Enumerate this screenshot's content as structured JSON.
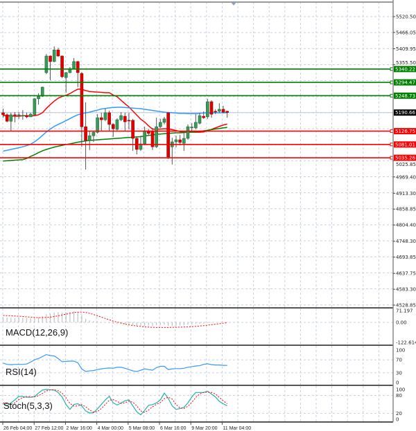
{
  "chart_data": [
    {
      "type": "candlestick",
      "panel": "main",
      "price_ticks": [
        "5520.50",
        "5466.05",
        "5409.95",
        "5355.50",
        "5025.85",
        "4969.40",
        "4913.30",
        "4858.85",
        "4804.40",
        "4748.30",
        "4693.85",
        "4637.75",
        "4583.30",
        "4528.85"
      ],
      "ylim": [
        4528.85,
        5577.6
      ],
      "grid": true,
      "current_price": "5190.66",
      "levels": [
        {
          "value": "5340.22",
          "color": "#008000",
          "kind": "resistance"
        },
        {
          "value": "5294.47",
          "color": "#008000",
          "kind": "resistance"
        },
        {
          "value": "5248.73",
          "color": "#008000",
          "kind": "resistance"
        },
        {
          "value": "5126.75",
          "color": "#ff0000",
          "kind": "support"
        },
        {
          "value": "5081.01",
          "color": "#ff0000",
          "kind": "support"
        },
        {
          "value": "5035.26",
          "color": "#ff0000",
          "kind": "support"
        }
      ],
      "time_labels": [
        "26 Feb 04:00",
        "27 Feb 12:00",
        "2 Mar 16:00",
        "4 Mar 00:00",
        "5 Mar 08:00",
        "6 Mar 16:00",
        "9 Mar 20:00",
        "11 Mar 04:00"
      ],
      "ohlc": [
        [
          5190,
          5204,
          5173,
          5183
        ],
        [
          5183,
          5188,
          5157,
          5161
        ],
        [
          5161,
          5190,
          5128,
          5183
        ],
        [
          5183,
          5192,
          5157,
          5182
        ],
        [
          5183,
          5192,
          5169,
          5183
        ],
        [
          5180,
          5199,
          5166,
          5181
        ],
        [
          5180,
          5190,
          5171,
          5176
        ],
        [
          5176,
          5190,
          5176,
          5185
        ],
        [
          5183,
          5240,
          5180,
          5238
        ],
        [
          5238,
          5257,
          5218,
          5247
        ],
        [
          5247,
          5280,
          5245,
          5278
        ],
        [
          5328,
          5392,
          5323,
          5385
        ],
        [
          5385,
          5387,
          5302,
          5366
        ],
        [
          5366,
          5418,
          5364,
          5406
        ],
        [
          5406,
          5413,
          5383,
          5385
        ],
        [
          5385,
          5387,
          5309,
          5314
        ],
        [
          5311,
          5330,
          5259,
          5328
        ],
        [
          5328,
          5347,
          5326,
          5342
        ],
        [
          5342,
          5378,
          5340,
          5366
        ],
        [
          5366,
          5368,
          5278,
          5328
        ],
        [
          5325,
          5330,
          5073,
          5142
        ],
        [
          5142,
          5226,
          4995,
          5095
        ],
        [
          5095,
          5126,
          5062,
          5111
        ],
        [
          5111,
          5128,
          5090,
          5123
        ],
        [
          5123,
          5185,
          5119,
          5173
        ],
        [
          5173,
          5190,
          5126,
          5166
        ],
        [
          5166,
          5204,
          5161,
          5190
        ],
        [
          5190,
          5197,
          5126,
          5150
        ],
        [
          5150,
          5154,
          5107,
          5135
        ],
        [
          5133,
          5171,
          5128,
          5166
        ],
        [
          5166,
          5192,
          5161,
          5180
        ],
        [
          5178,
          5190,
          5126,
          5159
        ],
        [
          5164,
          5190,
          5133,
          5163
        ],
        [
          5164,
          5169,
          5059,
          5102
        ],
        [
          5102,
          5109,
          5047,
          5064
        ],
        [
          5064,
          5111,
          5059,
          5083
        ],
        [
          5083,
          5142,
          5078,
          5128
        ],
        [
          5128,
          5135,
          5111,
          5119
        ],
        [
          5126,
          5138,
          5062,
          5073
        ],
        [
          5073,
          5173,
          5069,
          5142
        ],
        [
          5142,
          5169,
          5138,
          5157
        ],
        [
          5157,
          5176,
          5150,
          5169
        ],
        [
          5190,
          5192,
          5031,
          5038
        ],
        [
          5073,
          5104,
          5012,
          5090
        ],
        [
          5090,
          5111,
          5071,
          5097
        ],
        [
          5097,
          5114,
          5078,
          5088
        ],
        [
          5085,
          5126,
          5059,
          5102
        ],
        [
          5102,
          5150,
          5097,
          5142
        ],
        [
          5140,
          5154,
          5126,
          5141
        ],
        [
          5138,
          5185,
          5133,
          5157
        ],
        [
          5154,
          5190,
          5150,
          5180
        ],
        [
          5178,
          5195,
          5169,
          5173
        ],
        [
          5176,
          5238,
          5169,
          5228
        ],
        [
          5228,
          5233,
          5173,
          5185
        ],
        [
          5195,
          5202,
          5185,
          5194
        ],
        [
          5195,
          5223,
          5190,
          5202
        ],
        [
          5202,
          5214,
          5188,
          5192
        ],
        [
          5195,
          5197,
          5173,
          5191
        ]
      ],
      "series": [
        {
          "color": "#ff0000",
          "values": [
            5180,
            5180,
            5179,
            5178,
            5178,
            5180,
            5180,
            5179,
            5180,
            5183,
            5190,
            5205,
            5218,
            5230,
            5240,
            5246,
            5250,
            5256,
            5264,
            5271,
            5271,
            5266,
            5263,
            5262,
            5261,
            5260,
            5259,
            5259,
            5251,
            5245,
            5233,
            5221,
            5210,
            5196,
            5182,
            5168,
            5158,
            5145,
            5134,
            5133,
            5134,
            5135,
            5135,
            5132,
            5129,
            5125,
            5123,
            5123,
            5123,
            5123,
            5123,
            5124,
            5128,
            5133,
            5138,
            5143,
            5148,
            5151
          ]
        },
        {
          "color": "#3399ff",
          "values": [
            5058,
            5061,
            5064,
            5067,
            5070,
            5073,
            5077,
            5082,
            5090,
            5100,
            5112,
            5124,
            5134,
            5143,
            5150,
            5156,
            5163,
            5170,
            5177,
            5183,
            5187,
            5190,
            5192,
            5196,
            5199,
            5203,
            5205,
            5207,
            5208,
            5209,
            5209,
            5208,
            5207,
            5206,
            5205,
            5204,
            5202,
            5200,
            5198,
            5196,
            5194,
            5192,
            5191,
            5190,
            5189,
            5188,
            5188,
            5187,
            5187,
            5187,
            5188,
            5189,
            5190,
            5190,
            5190,
            5190,
            5190,
            5190
          ]
        },
        {
          "color": "#008000",
          "values": [
            5024,
            5025,
            5026,
            5027,
            5028,
            5029,
            5033,
            5040,
            5046,
            5053,
            5059,
            5064,
            5068,
            5072,
            5075,
            5078,
            5081,
            5083,
            5086,
            5089,
            5091,
            5093,
            5095,
            5096,
            5097,
            5098,
            5099,
            5100,
            5101,
            5102,
            5103,
            5104,
            5105,
            5106,
            5107,
            5108,
            5110,
            5112,
            5114,
            5116,
            5117,
            5118,
            5119,
            5120,
            5121,
            5121,
            5122,
            5123,
            5124,
            5125,
            5126,
            5128,
            5130,
            5132,
            5134,
            5136,
            5138,
            5140
          ]
        }
      ]
    },
    {
      "type": "bar+line",
      "panel": "macd",
      "label": "MACD(12,26,9)",
      "ticks": [
        "71.197",
        "0.00",
        "-122.614"
      ],
      "ylim": [
        -122.614,
        71.197
      ],
      "histogram": [
        30,
        29,
        28,
        27,
        28,
        27,
        26,
        25,
        27,
        32,
        38,
        50,
        52,
        60,
        62,
        60,
        62,
        64,
        68,
        64,
        45,
        22,
        12,
        8,
        6,
        3,
        2,
        -4,
        -8,
        -10,
        -10,
        -12,
        -12,
        -18,
        -22,
        -22,
        -20,
        -20,
        -22,
        -18,
        -16,
        -14,
        -20,
        -22,
        -20,
        -20,
        -18,
        -14,
        -12,
        -10,
        -8,
        -7,
        -3,
        -2,
        0,
        1,
        2,
        2
      ],
      "signal": [
        42,
        41,
        40,
        39,
        38,
        36,
        34,
        32,
        30,
        29,
        29,
        30,
        32,
        36,
        40,
        45,
        50,
        55,
        60,
        62,
        63,
        60,
        55,
        48,
        40,
        32,
        24,
        16,
        8,
        2,
        -4,
        -10,
        -15,
        -19,
        -22,
        -25,
        -27,
        -29,
        -30,
        -31,
        -31,
        -31,
        -31,
        -30,
        -30,
        -29,
        -28,
        -27,
        -26,
        -24,
        -22,
        -20,
        -17,
        -14,
        -11,
        -8,
        -5,
        -2
      ],
      "histogram_color": "#c0c0c0",
      "signal_color": "#ff0000"
    },
    {
      "type": "line",
      "panel": "rsi",
      "label": "RSI(14)",
      "ticks": [
        "100",
        "70",
        "30",
        "0"
      ],
      "ylim": [
        0,
        100
      ],
      "color": "#3399ff",
      "values": [
        60,
        56,
        55,
        56,
        56,
        56,
        57,
        63,
        70,
        74,
        80,
        86,
        83,
        82,
        74,
        64,
        65,
        66,
        66,
        61,
        42,
        34,
        36,
        37,
        40,
        42,
        44,
        45,
        44,
        47,
        47,
        44,
        40,
        36,
        34,
        38,
        42,
        40,
        38,
        46,
        50,
        50,
        40,
        42,
        43,
        43,
        44,
        47,
        49,
        51,
        52,
        56,
        58,
        55,
        54,
        54,
        53,
        53
      ]
    },
    {
      "type": "line",
      "panel": "stochastic",
      "label": "Stoch(5,3,3)",
      "ticks": [
        "100",
        "80",
        "20",
        "0"
      ],
      "ylim": [
        0,
        100
      ],
      "main_color": "#20b2aa",
      "signal_color": "#ff0000",
      "main": [
        52,
        45,
        55,
        65,
        77,
        76,
        74,
        74,
        76,
        88,
        98,
        100,
        99,
        98,
        90,
        75,
        50,
        33,
        50,
        52,
        45,
        28,
        21,
        22,
        35,
        50,
        65,
        77,
        55,
        48,
        55,
        62,
        65,
        45,
        25,
        15,
        30,
        47,
        49,
        55,
        65,
        88,
        70,
        45,
        33,
        36,
        40,
        55,
        75,
        90,
        90,
        90,
        94,
        85,
        75,
        60,
        52,
        45
      ],
      "signal": [
        55,
        52,
        50,
        55,
        66,
        73,
        76,
        75,
        75,
        79,
        87,
        95,
        99,
        99,
        96,
        88,
        72,
        53,
        44,
        45,
        49,
        42,
        31,
        24,
        26,
        36,
        50,
        64,
        66,
        60,
        53,
        55,
        61,
        57,
        45,
        28,
        23,
        31,
        42,
        50,
        56,
        69,
        74,
        68,
        49,
        38,
        36,
        44,
        57,
        73,
        85,
        90,
        91,
        90,
        85,
        73,
        62,
        52
      ]
    }
  ]
}
